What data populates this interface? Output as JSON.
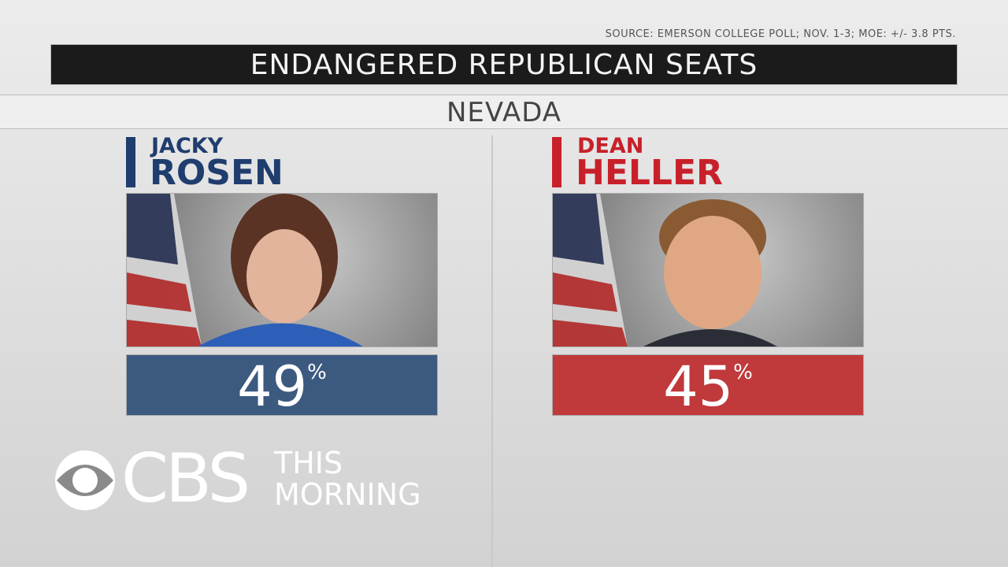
{
  "header": {
    "source": "SOURCE: EMERSON COLLEGE POLL; NOV. 1-3; MOE: +/- 3.8 PTS.",
    "title": "ENDANGERED REPUBLICAN SEATS",
    "subtitle": "NEVADA"
  },
  "candidates": [
    {
      "first_name": "JACKY",
      "last_name": "ROSEN",
      "value": 49,
      "unit": "%"
    },
    {
      "first_name": "DEAN",
      "last_name": "HELLER",
      "value": 45,
      "unit": "%"
    }
  ],
  "logo": {
    "network": "CBS",
    "line1": "THIS",
    "line2": "MORNING"
  }
}
